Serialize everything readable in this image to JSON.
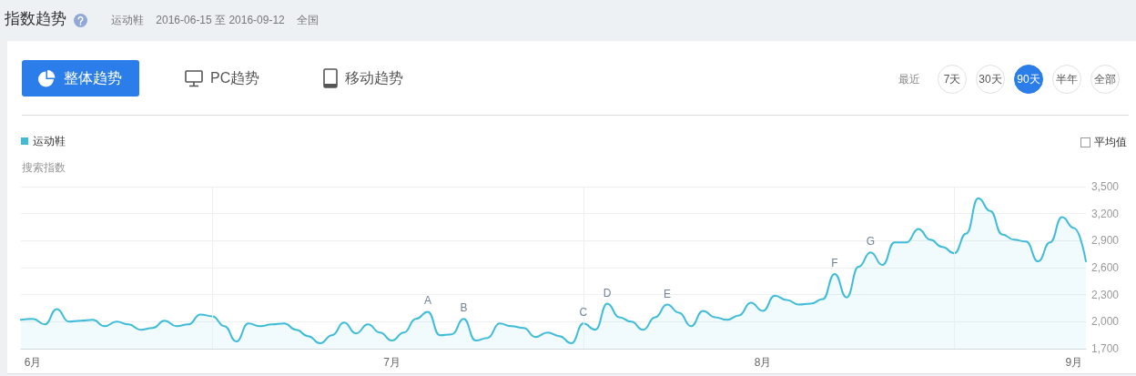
{
  "chart_data": {
    "type": "area",
    "title": "指数趋势",
    "subtitle": "运动鞋    2016-06-15 至 2016-09-12    全国",
    "ylabel": "搜索指数",
    "x": [
      "2016-06-15",
      "2016-06-16",
      "2016-06-17",
      "2016-06-18",
      "2016-06-19",
      "2016-06-20",
      "2016-06-21",
      "2016-06-22",
      "2016-06-23",
      "2016-06-24",
      "2016-06-25",
      "2016-06-26",
      "2016-06-27",
      "2016-06-28",
      "2016-06-29",
      "2016-06-30",
      "2016-07-01",
      "2016-07-02",
      "2016-07-03",
      "2016-07-04",
      "2016-07-05",
      "2016-07-06",
      "2016-07-07",
      "2016-07-08",
      "2016-07-09",
      "2016-07-10",
      "2016-07-11",
      "2016-07-12",
      "2016-07-13",
      "2016-07-14",
      "2016-07-15",
      "2016-07-16",
      "2016-07-17",
      "2016-07-18",
      "2016-07-19",
      "2016-07-20",
      "2016-07-21",
      "2016-07-22",
      "2016-07-23",
      "2016-07-24",
      "2016-07-25",
      "2016-07-26",
      "2016-07-27",
      "2016-07-28",
      "2016-07-29",
      "2016-07-30",
      "2016-07-31",
      "2016-08-01",
      "2016-08-02",
      "2016-08-03",
      "2016-08-04",
      "2016-08-05",
      "2016-08-06",
      "2016-08-07",
      "2016-08-08",
      "2016-08-09",
      "2016-08-10",
      "2016-08-11",
      "2016-08-12",
      "2016-08-13",
      "2016-08-14",
      "2016-08-15",
      "2016-08-16",
      "2016-08-17",
      "2016-08-18",
      "2016-08-19",
      "2016-08-20",
      "2016-08-21",
      "2016-08-22",
      "2016-08-23",
      "2016-08-24",
      "2016-08-25",
      "2016-08-26",
      "2016-08-27",
      "2016-08-28",
      "2016-08-29",
      "2016-08-30",
      "2016-08-31",
      "2016-09-01",
      "2016-09-02",
      "2016-09-03",
      "2016-09-04",
      "2016-09-05",
      "2016-09-06",
      "2016-09-07",
      "2016-09-08",
      "2016-09-09",
      "2016-09-10",
      "2016-09-11",
      "2016-09-12"
    ],
    "series": [
      {
        "name": "运动鞋",
        "color": "#3fbcd8",
        "values": [
          2020,
          2030,
          1970,
          2140,
          2000,
          2010,
          2020,
          1950,
          2000,
          1970,
          1910,
          1930,
          2010,
          1950,
          1970,
          2080,
          2060,
          1950,
          1780,
          1980,
          1950,
          1970,
          1980,
          1910,
          1840,
          1760,
          1850,
          1990,
          1870,
          1970,
          1880,
          1790,
          1880,
          2030,
          2110,
          1850,
          1860,
          2030,
          1790,
          1820,
          1980,
          1950,
          1930,
          1830,
          1880,
          1840,
          1760,
          1980,
          1910,
          2200,
          2050,
          2000,
          1910,
          2050,
          2190,
          2100,
          1950,
          2120,
          2050,
          2020,
          2070,
          2210,
          2120,
          2290,
          2240,
          2190,
          2200,
          2250,
          2530,
          2270,
          2610,
          2770,
          2630,
          2880,
          2880,
          3030,
          2910,
          2830,
          2760,
          2980,
          3370,
          3230,
          2970,
          2910,
          2890,
          2670,
          2880,
          3160,
          3040,
          2670
        ]
      }
    ],
    "xlim": [
      "2016-06-15",
      "2016-09-12"
    ],
    "xticks": [
      {
        "value": "2016-06-16",
        "label": "6月"
      },
      {
        "value": "2016-07-16",
        "label": "7月"
      },
      {
        "value": "2016-08-16",
        "label": "8月"
      },
      {
        "value": "2016-09-11",
        "label": "9月"
      }
    ],
    "ylim": [
      1700,
      3500
    ],
    "yticks": [
      {
        "value": 1700,
        "label": "1,700"
      },
      {
        "value": 2000,
        "label": "2,000"
      },
      {
        "value": 2300,
        "label": "2,300"
      },
      {
        "value": 2600,
        "label": "2,600"
      },
      {
        "value": 2900,
        "label": "2,900"
      },
      {
        "value": 3200,
        "label": "3,200"
      },
      {
        "value": 3500,
        "label": "3,500"
      }
    ],
    "ref_lines": [
      {
        "axis": "x",
        "value": "2016-07-01",
        "color": "#eceff2"
      },
      {
        "axis": "x",
        "value": "2016-08-01",
        "color": "#eceff2"
      },
      {
        "axis": "x",
        "value": "2016-09-01",
        "color": "#eceff2"
      }
    ],
    "annotations": [
      "整体趋势",
      "PC趋势",
      "移动趋势",
      "最近",
      "7天",
      "30天",
      "90天",
      "半年",
      "全部",
      "平均值",
      {
        "text": "A",
        "x": "2016-07-19",
        "y": 2110
      },
      {
        "text": "B",
        "x": "2016-07-22",
        "y": 2030
      },
      {
        "text": "C",
        "x": "2016-08-01",
        "y": 1980
      },
      {
        "text": "D",
        "x": "2016-08-03",
        "y": 2200
      },
      {
        "text": "E",
        "x": "2016-08-08",
        "y": 2190
      },
      {
        "text": "F",
        "x": "2016-08-22",
        "y": 2530
      },
      {
        "text": "G",
        "x": "2016-08-25",
        "y": 2770
      }
    ],
    "grid": "y",
    "legend": "top left",
    "marker": "none"
  }
}
